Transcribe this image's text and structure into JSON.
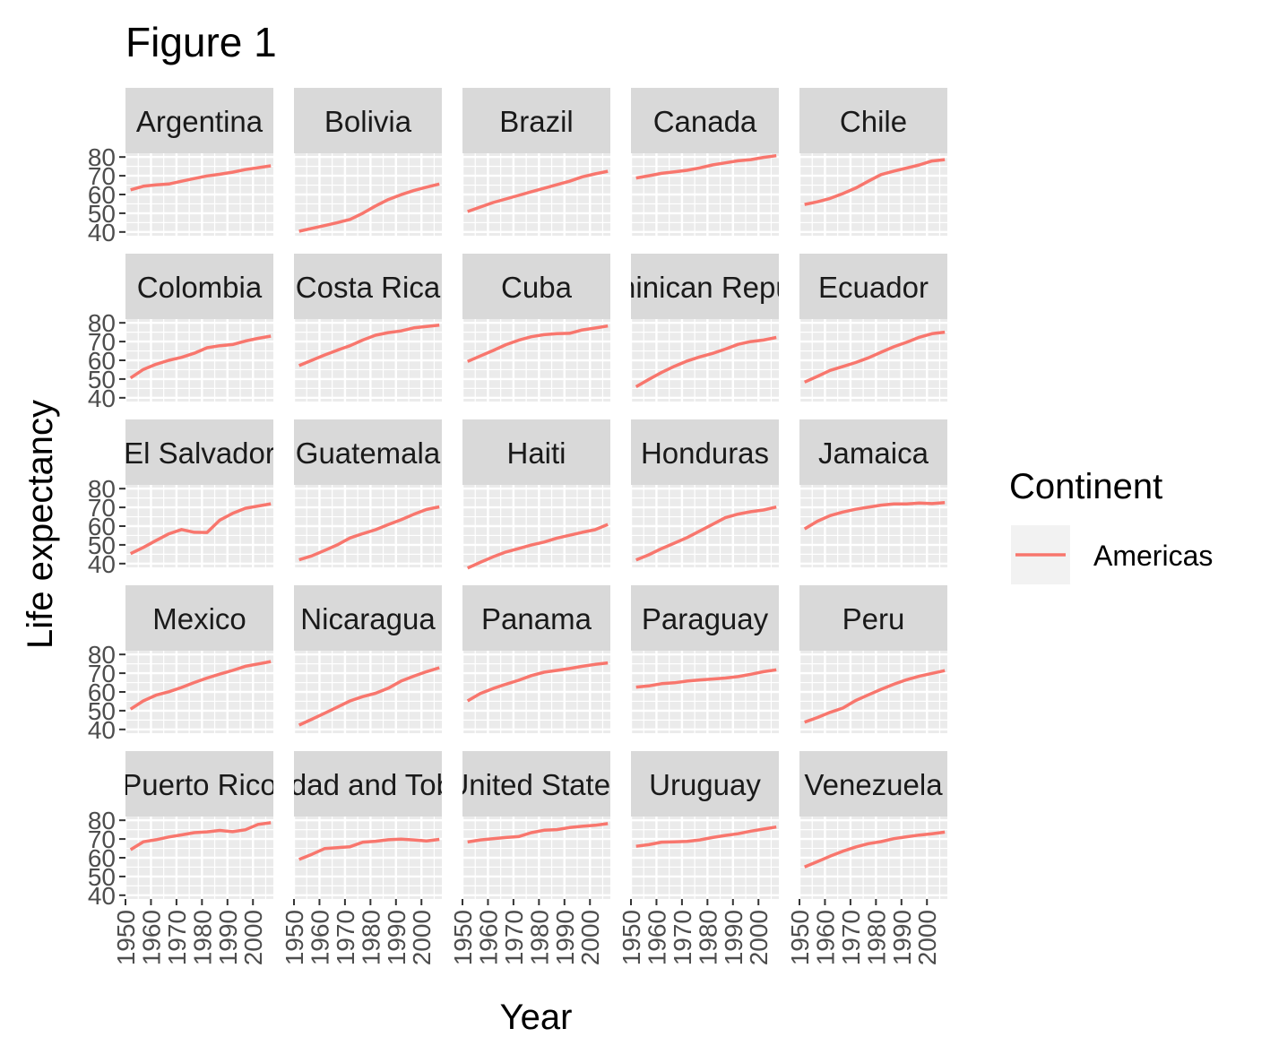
{
  "title": "Figure 1",
  "chart_data": {
    "type": "line",
    "facet": "wrap",
    "xlabel": "Year",
    "ylabel": "Life expectancy",
    "x": [
      1952,
      1957,
      1962,
      1967,
      1972,
      1977,
      1982,
      1987,
      1992,
      1997,
      2002,
      2007
    ],
    "xlim": [
      1950,
      2008
    ],
    "ylim": [
      38,
      82
    ],
    "x_ticks": [
      1950,
      1960,
      1970,
      1980,
      1990,
      2000
    ],
    "y_ticks": [
      40,
      50,
      60,
      70,
      80
    ],
    "grid": true,
    "legend": {
      "title": "Continent",
      "position": "right",
      "entries": [
        {
          "label": "Americas",
          "color": "#F8766D"
        }
      ]
    },
    "panels": [
      {
        "label": "Argentina",
        "values": [
          62.5,
          64.4,
          65.1,
          65.6,
          67.1,
          68.5,
          69.9,
          70.8,
          71.9,
          73.3,
          74.3,
          75.3
        ]
      },
      {
        "label": "Bolivia",
        "values": [
          40.4,
          41.9,
          43.4,
          45.0,
          46.7,
          50.0,
          53.9,
          57.3,
          59.9,
          62.1,
          63.9,
          65.6
        ]
      },
      {
        "label": "Brazil",
        "values": [
          50.9,
          53.3,
          55.7,
          57.6,
          59.5,
          61.5,
          63.3,
          65.2,
          67.1,
          69.4,
          71.0,
          72.4
        ]
      },
      {
        "label": "Canada",
        "values": [
          68.8,
          70.0,
          71.3,
          72.1,
          72.9,
          74.2,
          75.8,
          76.9,
          78.0,
          78.6,
          79.8,
          80.7
        ]
      },
      {
        "label": "Chile",
        "values": [
          54.7,
          56.1,
          57.9,
          60.5,
          63.4,
          67.1,
          70.6,
          72.5,
          74.1,
          75.8,
          77.9,
          78.6
        ]
      },
      {
        "label": "Colombia",
        "values": [
          50.6,
          55.1,
          57.9,
          60.0,
          61.6,
          63.8,
          66.7,
          67.8,
          68.4,
          70.3,
          71.7,
          72.9
        ]
      },
      {
        "label": "Costa Rica",
        "values": [
          57.2,
          60.0,
          62.8,
          65.4,
          67.8,
          70.8,
          73.4,
          74.8,
          75.7,
          77.3,
          78.1,
          78.8
        ]
      },
      {
        "label": "Cuba",
        "values": [
          59.4,
          62.3,
          65.2,
          68.3,
          70.7,
          72.6,
          73.7,
          74.2,
          74.4,
          76.2,
          77.2,
          78.3
        ]
      },
      {
        "label": "Dominican Republic",
        "values": [
          45.9,
          49.8,
          53.5,
          56.8,
          59.6,
          61.8,
          63.7,
          66.0,
          68.5,
          70.0,
          70.8,
          72.2
        ]
      },
      {
        "label": "Ecuador",
        "values": [
          48.4,
          51.4,
          54.6,
          56.7,
          58.8,
          61.3,
          64.3,
          67.2,
          69.6,
          72.3,
          74.2,
          75.0
        ]
      },
      {
        "label": "El Salvador",
        "values": [
          45.3,
          48.6,
          52.3,
          55.9,
          58.2,
          56.7,
          56.6,
          63.2,
          66.8,
          69.5,
          70.7,
          71.9
        ]
      },
      {
        "label": "Guatemala",
        "values": [
          42.0,
          44.1,
          47.0,
          50.0,
          53.7,
          56.0,
          58.1,
          60.8,
          63.4,
          66.3,
          68.9,
          70.3
        ]
      },
      {
        "label": "Haiti",
        "values": [
          37.6,
          40.7,
          43.6,
          46.2,
          48.0,
          49.9,
          51.5,
          53.6,
          55.1,
          56.7,
          58.1,
          60.9
        ]
      },
      {
        "label": "Honduras",
        "values": [
          41.9,
          44.7,
          48.0,
          50.9,
          53.9,
          57.4,
          60.9,
          64.5,
          66.4,
          67.7,
          68.6,
          70.2
        ]
      },
      {
        "label": "Jamaica",
        "values": [
          58.5,
          62.6,
          65.6,
          67.5,
          69.0,
          70.1,
          71.2,
          71.8,
          71.8,
          72.3,
          72.0,
          72.6
        ]
      },
      {
        "label": "Mexico",
        "values": [
          50.8,
          55.2,
          58.3,
          60.1,
          62.4,
          65.0,
          67.4,
          69.5,
          71.5,
          73.7,
          74.9,
          76.2
        ]
      },
      {
        "label": "Nicaragua",
        "values": [
          42.3,
          45.4,
          48.6,
          51.9,
          55.2,
          57.5,
          59.3,
          62.0,
          65.8,
          68.4,
          70.8,
          72.9
        ]
      },
      {
        "label": "Panama",
        "values": [
          55.2,
          59.2,
          61.8,
          64.1,
          66.2,
          68.7,
          70.5,
          71.5,
          72.5,
          73.7,
          74.7,
          75.5
        ]
      },
      {
        "label": "Paraguay",
        "values": [
          62.6,
          63.2,
          64.4,
          64.9,
          65.8,
          66.4,
          66.9,
          67.4,
          68.2,
          69.4,
          70.8,
          71.8
        ]
      },
      {
        "label": "Peru",
        "values": [
          43.9,
          46.3,
          49.1,
          51.4,
          55.4,
          58.4,
          61.4,
          64.1,
          66.5,
          68.4,
          69.9,
          71.4
        ]
      },
      {
        "label": "Puerto Rico",
        "values": [
          64.3,
          68.5,
          69.6,
          71.1,
          72.2,
          73.4,
          73.8,
          74.6,
          73.9,
          74.9,
          77.8,
          78.7
        ]
      },
      {
        "label": "Trinidad and Tobago",
        "values": [
          59.1,
          61.8,
          64.9,
          65.4,
          65.9,
          68.3,
          68.8,
          69.6,
          69.9,
          69.5,
          68.98,
          69.8
        ]
      },
      {
        "label": "United States",
        "values": [
          68.4,
          69.5,
          70.2,
          70.8,
          71.3,
          73.4,
          74.7,
          75.0,
          76.1,
          76.8,
          77.3,
          78.2
        ]
      },
      {
        "label": "Uruguay",
        "values": [
          66.1,
          67.0,
          68.3,
          68.5,
          68.7,
          69.5,
          70.8,
          71.9,
          72.8,
          74.2,
          75.3,
          76.4
        ]
      },
      {
        "label": "Venezuela",
        "values": [
          55.1,
          57.9,
          60.8,
          63.5,
          65.7,
          67.5,
          68.6,
          70.2,
          71.2,
          72.1,
          72.8,
          73.7
        ]
      }
    ]
  }
}
